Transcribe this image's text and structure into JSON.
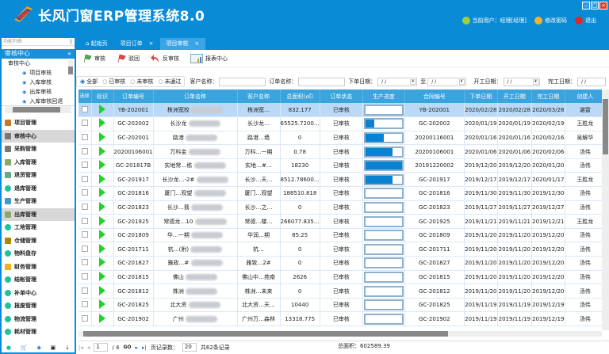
{
  "app": {
    "title": "长风门窗ERP管理系统8.0",
    "current_user": "当前用户：经理[经理]",
    "change_password": "修改密码",
    "logout": "退出"
  },
  "sidebar": {
    "panel_title": "功能列表",
    "section_title": "审核中心",
    "tree": {
      "root": "审核中心",
      "items": [
        "项目审核",
        "入库审核",
        "出库审核",
        "入库审核回退"
      ]
    },
    "nav": [
      {
        "label": "项目管理"
      },
      {
        "label": "审核中心",
        "selected": true
      },
      {
        "label": "采购管理"
      },
      {
        "label": "入库管理"
      },
      {
        "label": "退货管理"
      },
      {
        "label": "退库管理"
      },
      {
        "label": "生产管理"
      },
      {
        "label": "出库管理",
        "selected": true
      },
      {
        "label": "工地管理"
      },
      {
        "label": "仓储管理"
      },
      {
        "label": "物料盘存"
      },
      {
        "label": "财务管理"
      },
      {
        "label": "结帐管理"
      },
      {
        "label": "补单中心"
      },
      {
        "label": "报废管理"
      },
      {
        "label": "物流管理"
      },
      {
        "label": "耗材管理"
      }
    ]
  },
  "tabs": [
    {
      "label": "起始页"
    },
    {
      "label": "项目订单"
    },
    {
      "label": "项目审核",
      "active": true
    }
  ],
  "toolbar": {
    "approve": "审核",
    "reject": "驳回",
    "unapprove": "反审核",
    "report": "报表中心"
  },
  "filter": {
    "radios": [
      "全部",
      "已审核",
      "未审核",
      "未通过"
    ],
    "selected": "全部",
    "customer_label": "客户名称：",
    "order_label": "订单名称：",
    "order_date_label": "下单日期：",
    "to_label": "至",
    "start_date_label": "开工日期：",
    "finish_date_label": "完工日期：",
    "date_placeholder": "/ /"
  },
  "table": {
    "columns": [
      "选择",
      "标识",
      "订单编号",
      "订单名称",
      "客户名称",
      "总面积(㎡)",
      "订单状态",
      "生产进度",
      "合同编号",
      "下单日期",
      "开工日期",
      "完工日期",
      "创建人"
    ],
    "rows": [
      {
        "id": "YB-202001",
        "name": "株洲宽校",
        "customer": "株洲宽…",
        "area": "832.177",
        "status": "已审核",
        "progress": 0,
        "contract": "YB-202001",
        "order_date": "2020/02/28",
        "start": "2020/02/28",
        "finish": "2020/03/28",
        "creator": "谌雷"
      },
      {
        "id": "GC-202002",
        "name": "长沙龙",
        "customer": "长沙龙…",
        "area": "65525.7200…",
        "status": "已审核",
        "progress": 25,
        "contract": "GC-202002",
        "order_date": "2020/01/19",
        "start": "2020/01/19",
        "finish": "2020/02/19",
        "creator": "王胜龙"
      },
      {
        "id": "GC-202001",
        "name": "路港",
        "customer": "路港…墙",
        "area": "0",
        "status": "已审核",
        "progress": 50,
        "contract": "20200116001",
        "order_date": "2020/01/16",
        "start": "2020/01/16",
        "finish": "2020/02/16",
        "creator": "吴解华"
      },
      {
        "id": "20200106001",
        "name": "万科金",
        "customer": "万科…一期",
        "area": "0.78",
        "status": "已审核",
        "progress": 75,
        "contract": "20200106001",
        "order_date": "2020/01/06",
        "start": "2020/01/06",
        "finish": "2020/02/06",
        "creator": "汤伟"
      },
      {
        "id": "GC-201817B",
        "name": "实地常…栋",
        "customer": "实地…#…",
        "area": "18230",
        "status": "已审核",
        "progress": 100,
        "contract": "20191220002",
        "order_date": "2019/12/20",
        "start": "2019/12/20",
        "finish": "2020/01/20",
        "creator": "汤伟"
      },
      {
        "id": "GC-201917",
        "name": "长沙龙…-2#",
        "customer": "长沙…天…",
        "area": "8512.78600…",
        "status": "已审核",
        "progress": 75,
        "contract": "GC-201917",
        "order_date": "2019/12/17",
        "start": "2019/12/17",
        "finish": "2020/01/17",
        "creator": "王胜龙"
      },
      {
        "id": "GC-201816",
        "name": "厦门…观望",
        "customer": "厦门…观望",
        "area": "188510.818",
        "status": "已审核",
        "progress": 0,
        "contract": "GC-201816",
        "order_date": "2019/11/30",
        "start": "2019/11/30",
        "finish": "2019/12/30",
        "creator": "汤伟"
      },
      {
        "id": "GC-201823",
        "name": "长沙…翡",
        "customer": "长沙…之…",
        "area": "0",
        "status": "已审核",
        "progress": 0,
        "contract": "GC-201823",
        "order_date": "2019/11/27",
        "start": "2019/11/27",
        "finish": "2019/12/27",
        "creator": "汤伟"
      },
      {
        "id": "GC-201925",
        "name": "常德龙…10",
        "customer": "常德…楼…",
        "area": "266077.835…",
        "status": "已审核",
        "progress": 0,
        "contract": "GC-201925",
        "order_date": "2019/11/21",
        "start": "2019/11/21",
        "finish": "2019/12/21",
        "creator": "王胜龙"
      },
      {
        "id": "GC-201809",
        "name": "华…一期",
        "customer": "华润…期",
        "area": "85.25",
        "status": "已审核",
        "progress": 0,
        "contract": "GC-201809",
        "order_date": "2019/11/20",
        "start": "2019/11/20",
        "finish": "2019/12/20",
        "creator": "汤伟"
      },
      {
        "id": "GC-201711",
        "name": "杭…(附)",
        "customer": "杭…",
        "area": "0",
        "status": "已审核",
        "progress": 0,
        "contract": "GC-201711",
        "order_date": "2019/11/20",
        "start": "2019/11/20",
        "finish": "2019/12/20",
        "creator": "汤伟"
      },
      {
        "id": "GC-201827",
        "name": "雅政…#",
        "customer": "雅致…2#",
        "area": "0",
        "status": "已审核",
        "progress": 0,
        "contract": "GC-201827",
        "order_date": "2019/11/20",
        "start": "2019/11/20",
        "finish": "2019/12/20",
        "creator": "汤伟"
      },
      {
        "id": "GC-201815",
        "name": "佛山",
        "customer": "佛山中…苑南",
        "area": "2626",
        "status": "已审核",
        "progress": 0,
        "contract": "GC-201815",
        "order_date": "2019/11/20",
        "start": "2019/11/20",
        "finish": "2019/12/20",
        "creator": "汤伟"
      },
      {
        "id": "GC-201812",
        "name": "株洲",
        "customer": "株洲…未来",
        "area": "0",
        "status": "已审核",
        "progress": 0,
        "contract": "GC-201812",
        "order_date": "2019/11/20",
        "start": "2019/11/20",
        "finish": "2019/12/20",
        "creator": "汤伟"
      },
      {
        "id": "GC-201825",
        "name": "北大资",
        "customer": "北大资…天…",
        "area": "10440",
        "status": "已审核",
        "progress": 0,
        "contract": "GC-201825",
        "order_date": "2019/11/19",
        "start": "2019/11/19",
        "finish": "2019/12/19",
        "creator": "汤伟"
      },
      {
        "id": "GC-201902",
        "name": "广州",
        "customer": "广州万…森林",
        "area": "13318.775",
        "status": "已审核",
        "progress": 0,
        "contract": "GC-201902",
        "order_date": "2019/11/19",
        "start": "2019/11/19",
        "finish": "2019/12/19",
        "creator": "汤伟"
      }
    ]
  },
  "pager": {
    "page": "1",
    "total_pages": "/ 4",
    "go": "GO",
    "page_size_label": "页记录数：",
    "page_size": "20",
    "total_records": "共62条记录"
  },
  "summary": {
    "total_area": "总面积：602589.39"
  },
  "colors": {
    "header_bg": "#0a8bd6",
    "table_header": "#3ba3dd",
    "selected_row": "#b9d9f6",
    "progress_fill": "#0a82d2",
    "flag_mark": "#1ed42a"
  }
}
